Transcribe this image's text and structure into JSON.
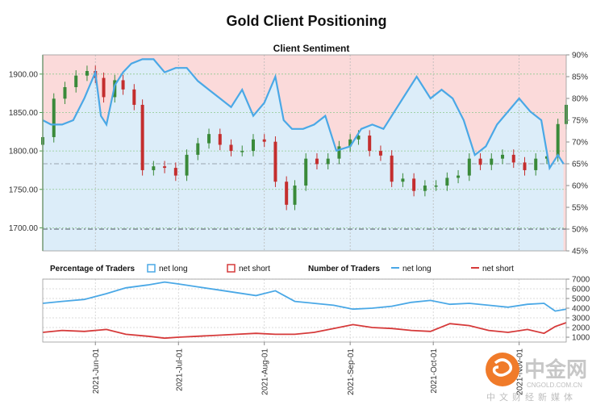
{
  "title": "Gold Client Positioning",
  "watermark": {
    "brand": "中金网",
    "url": "CNGOLD.COM.CN",
    "tagline": "中文财经新媒体",
    "colors": {
      "circle": "#f07b2a",
      "text": "#c7c7c7"
    }
  },
  "chart_data": [
    {
      "type": "line",
      "subtitle": "Client Sentiment",
      "x_ticks": [
        "2021-Jun-01",
        "2021-Jul-01",
        "2021-Aug-01",
        "2021-Sep-01",
        "2021-Oct-01",
        "2021-Nov-01"
      ],
      "x_range": [
        "2021-May-13",
        "2021-Nov-18"
      ],
      "y_left": {
        "ticks": [
          "1900.00",
          "1850.00",
          "1800.00",
          "1750.00",
          "1700.00"
        ],
        "range": [
          1670,
          1925
        ]
      },
      "y_right": {
        "ticks": [
          "90%",
          "85%",
          "80%",
          "75%",
          "70%",
          "65%",
          "60%",
          "55%",
          "50%",
          "45%"
        ],
        "range": [
          45,
          90
        ]
      },
      "reference_lines": {
        "sentiment_65pct": 65,
        "sentiment_50pct": 50
      },
      "series": [
        {
          "name": "net long",
          "kind": "percentage line",
          "color": "#4aa8e6",
          "x": [
            "2021-May-13",
            "2021-May-16",
            "2021-May-20",
            "2021-May-24",
            "2021-May-28",
            "2021-Jun-01",
            "2021-Jun-03",
            "2021-Jun-05",
            "2021-Jun-08",
            "2021-Jun-11",
            "2021-Jun-14",
            "2021-Jun-18",
            "2021-Jun-22",
            "2021-Jun-26",
            "2021-Jun-30",
            "2021-Jul-04",
            "2021-Jul-08",
            "2021-Jul-12",
            "2021-Jul-16",
            "2021-Jul-20",
            "2021-Jul-24",
            "2021-Jul-28",
            "2021-Aug-01",
            "2021-Aug-05",
            "2021-Aug-08",
            "2021-Aug-11",
            "2021-Aug-15",
            "2021-Aug-19",
            "2021-Aug-23",
            "2021-Aug-27",
            "2021-Sep-01",
            "2021-Sep-05",
            "2021-Sep-09",
            "2021-Sep-13",
            "2021-Sep-17",
            "2021-Sep-21",
            "2021-Sep-25",
            "2021-Sep-30",
            "2021-Oct-04",
            "2021-Oct-08",
            "2021-Oct-12",
            "2021-Oct-16",
            "2021-Oct-20",
            "2021-Oct-24",
            "2021-Oct-28",
            "2021-Nov-01",
            "2021-Nov-05",
            "2021-Nov-09",
            "2021-Nov-12",
            "2021-Nov-15",
            "2021-Nov-17"
          ],
          "values": [
            75,
            74,
            74,
            75,
            80,
            86,
            76,
            74,
            83,
            86,
            88,
            89,
            89,
            86,
            87,
            87,
            84,
            82,
            80,
            78,
            82,
            76,
            79,
            85,
            75,
            73,
            73,
            74,
            76,
            68,
            69,
            73,
            74,
            73,
            77,
            81,
            85,
            80,
            82,
            80,
            75,
            67,
            69,
            74,
            77,
            80,
            77,
            75,
            64,
            67,
            65
          ]
        },
        {
          "name": "Gold price",
          "kind": "candlestick",
          "colors": {
            "up": "#3a8a3a",
            "down": "#c42e2e"
          },
          "x": [
            "2021-May-13",
            "2021-May-17",
            "2021-May-21",
            "2021-May-25",
            "2021-May-29",
            "2021-Jun-01",
            "2021-Jun-04",
            "2021-Jun-08",
            "2021-Jun-11",
            "2021-Jun-15",
            "2021-Jun-18",
            "2021-Jun-22",
            "2021-Jun-26",
            "2021-Jun-30",
            "2021-Jul-04",
            "2021-Jul-08",
            "2021-Jul-12",
            "2021-Jul-16",
            "2021-Jul-20",
            "2021-Jul-24",
            "2021-Jul-28",
            "2021-Aug-01",
            "2021-Aug-05",
            "2021-Aug-09",
            "2021-Aug-12",
            "2021-Aug-16",
            "2021-Aug-20",
            "2021-Aug-24",
            "2021-Aug-28",
            "2021-Sep-01",
            "2021-Sep-04",
            "2021-Sep-08",
            "2021-Sep-12",
            "2021-Sep-16",
            "2021-Sep-20",
            "2021-Sep-24",
            "2021-Sep-28",
            "2021-Oct-02",
            "2021-Oct-06",
            "2021-Oct-10",
            "2021-Oct-14",
            "2021-Oct-18",
            "2021-Oct-22",
            "2021-Oct-26",
            "2021-Oct-30",
            "2021-Nov-03",
            "2021-Nov-07",
            "2021-Nov-11",
            "2021-Nov-15",
            "2021-Nov-18"
          ],
          "values": [
            1818,
            1868,
            1883,
            1898,
            1904,
            1895,
            1870,
            1892,
            1880,
            1860,
            1775,
            1780,
            1778,
            1768,
            1795,
            1810,
            1822,
            1808,
            1800,
            1800,
            1815,
            1812,
            1760,
            1730,
            1755,
            1790,
            1783,
            1790,
            1806,
            1815,
            1820,
            1800,
            1794,
            1760,
            1764,
            1748,
            1755,
            1755,
            1765,
            1768,
            1790,
            1782,
            1790,
            1795,
            1785,
            1775,
            1790,
            1793,
            1835,
            1860
          ]
        }
      ]
    },
    {
      "type": "line",
      "legend": {
        "left_title": "Percentage of Traders",
        "left_items": [
          "net long",
          "net short"
        ],
        "right_title": "Number of Traders",
        "right_items": [
          "net long",
          "net short"
        ],
        "colors": {
          "net long": "#4aa8e6",
          "net short": "#d63a3a"
        }
      },
      "y_ticks": [
        "7000",
        "6000",
        "5000",
        "4000",
        "3000",
        "2000",
        "1000"
      ],
      "ylim": [
        500,
        7000
      ],
      "series": [
        {
          "name": "net long",
          "x": [
            "2021-May-13",
            "2021-May-20",
            "2021-May-28",
            "2021-Jun-05",
            "2021-Jun-12",
            "2021-Jun-20",
            "2021-Jun-26",
            "2021-Jul-01",
            "2021-Jul-08",
            "2021-Jul-15",
            "2021-Jul-22",
            "2021-Jul-29",
            "2021-Aug-05",
            "2021-Aug-12",
            "2021-Aug-19",
            "2021-Aug-26",
            "2021-Sep-02",
            "2021-Sep-09",
            "2021-Sep-16",
            "2021-Sep-23",
            "2021-Sep-30",
            "2021-Oct-07",
            "2021-Oct-14",
            "2021-Oct-21",
            "2021-Oct-28",
            "2021-Nov-04",
            "2021-Nov-10",
            "2021-Nov-14",
            "2021-Nov-18"
          ],
          "values": [
            4500,
            4700,
            4900,
            5500,
            6100,
            6400,
            6700,
            6500,
            6200,
            5900,
            5600,
            5300,
            5800,
            4700,
            4500,
            4300,
            3900,
            4000,
            4200,
            4600,
            4800,
            4400,
            4500,
            4300,
            4100,
            4400,
            4500,
            3700,
            3900
          ]
        },
        {
          "name": "net short",
          "x": [
            "2021-May-13",
            "2021-May-20",
            "2021-May-28",
            "2021-Jun-05",
            "2021-Jun-12",
            "2021-Jun-20",
            "2021-Jun-26",
            "2021-Jul-01",
            "2021-Jul-08",
            "2021-Jul-15",
            "2021-Jul-22",
            "2021-Jul-29",
            "2021-Aug-05",
            "2021-Aug-12",
            "2021-Aug-19",
            "2021-Aug-26",
            "2021-Sep-02",
            "2021-Sep-09",
            "2021-Sep-16",
            "2021-Sep-23",
            "2021-Sep-30",
            "2021-Oct-07",
            "2021-Oct-14",
            "2021-Oct-21",
            "2021-Oct-28",
            "2021-Nov-04",
            "2021-Nov-10",
            "2021-Nov-14",
            "2021-Nov-18"
          ],
          "values": [
            1500,
            1700,
            1600,
            1800,
            1300,
            1100,
            900,
            1000,
            1100,
            1200,
            1300,
            1400,
            1300,
            1300,
            1500,
            1900,
            2300,
            2000,
            1900,
            1700,
            1600,
            2400,
            2200,
            1700,
            1500,
            1800,
            1400,
            2100,
            2500
          ]
        }
      ]
    }
  ]
}
